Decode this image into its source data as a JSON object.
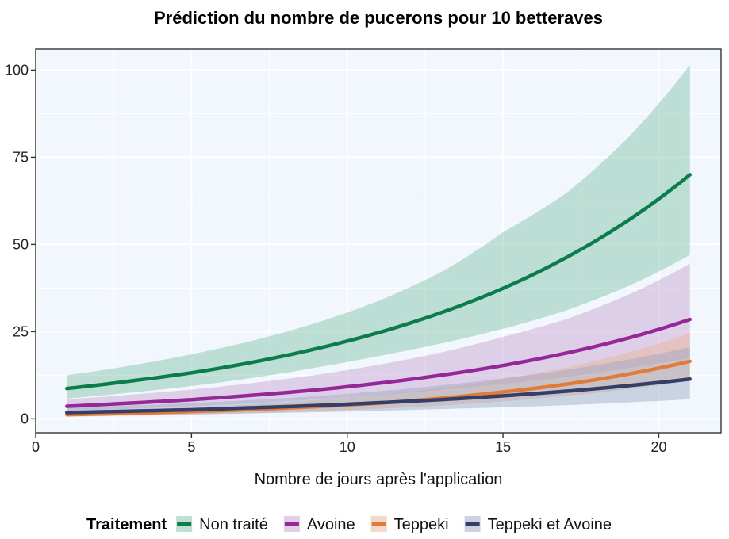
{
  "chart_data": {
    "type": "line",
    "title": "Prédiction du nombre de pucerons pour 10 betteraves",
    "xlabel": "Nombre de jours après l'application",
    "ylabel": "",
    "xlim": [
      0,
      22
    ],
    "ylim": [
      -4,
      106
    ],
    "x_ticks": [
      0,
      5,
      10,
      15,
      20
    ],
    "x_tick_labels": [
      "0",
      "5",
      "10",
      "15",
      "20"
    ],
    "y_ticks": [
      0,
      25,
      50,
      75,
      100
    ],
    "y_tick_labels": [
      "0",
      "25",
      "50",
      "75",
      "100"
    ],
    "grid": true,
    "legend_position": "bottom",
    "legend_title": "Traitement",
    "x": [
      1,
      3,
      5,
      7,
      9,
      11,
      13,
      15,
      17,
      19,
      21
    ],
    "series": [
      {
        "name": "Non traité",
        "color": "#0b7d4a",
        "band_color": "#7fbfa6",
        "values": [
          8.7,
          10.8,
          13.2,
          16.3,
          20.1,
          24.7,
          30.4,
          37.4,
          46.1,
          56.8,
          70.0
        ],
        "lower": [
          5.8,
          7.5,
          9.4,
          11.8,
          14.7,
          18.0,
          21.6,
          25.8,
          31.0,
          38.0,
          47.0
        ],
        "upper": [
          12.5,
          15.2,
          18.5,
          22.5,
          27.5,
          33.8,
          42.0,
          53.5,
          64.5,
          80.5,
          101.5
        ]
      },
      {
        "name": "Avoine",
        "color": "#952897",
        "band_color": "#c79dd2",
        "values": [
          3.6,
          4.5,
          5.5,
          6.8,
          8.3,
          10.2,
          12.5,
          15.3,
          18.8,
          23.1,
          28.5
        ],
        "lower": [
          2.2,
          2.9,
          3.6,
          4.5,
          5.6,
          6.8,
          8.3,
          10.0,
          12.0,
          14.5,
          17.5
        ],
        "upper": [
          5.6,
          6.9,
          8.4,
          10.3,
          12.6,
          15.5,
          19.0,
          23.5,
          28.5,
          35.5,
          44.5
        ]
      },
      {
        "name": "Teppeki",
        "color": "#e07b39",
        "band_color": "#ebb290",
        "values": [
          1.2,
          1.6,
          2.1,
          2.7,
          3.5,
          4.5,
          5.9,
          7.7,
          9.9,
          12.8,
          16.5
        ],
        "lower": [
          0.6,
          0.9,
          1.2,
          1.6,
          2.2,
          2.9,
          3.8,
          5.0,
          6.6,
          8.5,
          11.0
        ],
        "upper": [
          2.0,
          2.6,
          3.3,
          4.2,
          5.4,
          6.9,
          8.8,
          11.4,
          14.7,
          19.0,
          24.5
        ]
      },
      {
        "name": "Teppeki et Avoine",
        "color": "#343e67",
        "band_color": "#9aa6c1",
        "values": [
          1.8,
          2.2,
          2.6,
          3.2,
          3.8,
          4.6,
          5.5,
          6.6,
          7.9,
          9.5,
          11.4
        ],
        "lower": [
          0.9,
          1.1,
          1.3,
          1.6,
          1.9,
          2.3,
          2.8,
          3.3,
          3.9,
          4.7,
          5.6
        ],
        "upper": [
          3.2,
          3.8,
          4.5,
          5.4,
          6.5,
          7.9,
          9.6,
          11.6,
          14.0,
          17.0,
          20.5
        ]
      }
    ]
  }
}
